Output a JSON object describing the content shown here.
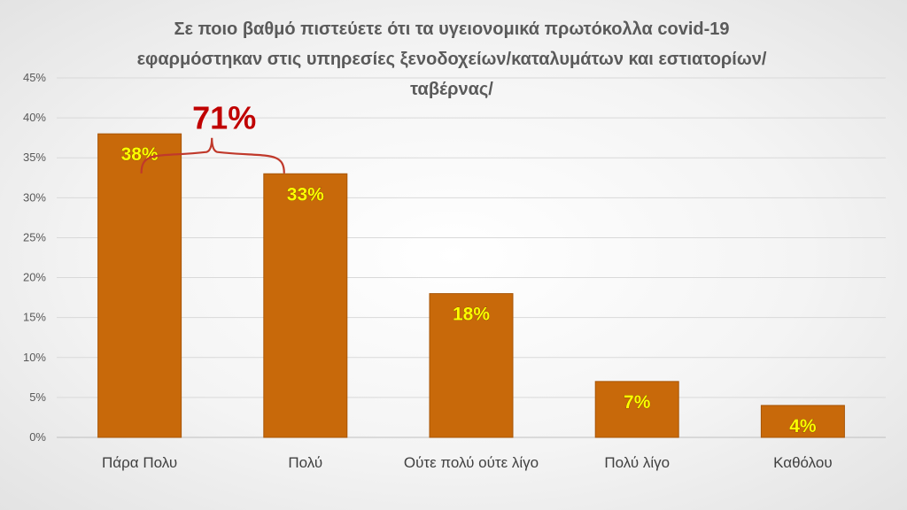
{
  "chart_data": {
    "type": "bar",
    "title": "Σε ποιο βαθμό πιστεύετε ότι τα υγειονομικά πρωτόκολλα covid-19 εφαρμόστηκαν στις υπηρεσίες ξενοδοχείων/καταλυμάτων και εστιατορίων/ταβέρνας/",
    "categories": [
      "Πάρα Πολυ",
      "Πολύ",
      "Ούτε πολύ ούτε λίγο",
      "Πολύ λίγο",
      "Καθόλου"
    ],
    "values": [
      38,
      33,
      18,
      7,
      4
    ],
    "value_labels": [
      "38%",
      "33%",
      "18%",
      "7%",
      "4%"
    ],
    "ylim": [
      0,
      45
    ],
    "yticks": [
      0,
      5,
      10,
      15,
      20,
      25,
      30,
      35,
      40,
      45
    ],
    "ytick_labels": [
      "0%",
      "5%",
      "10%",
      "15%",
      "20%",
      "25%",
      "30%",
      "35%",
      "40%",
      "45%"
    ],
    "grid": true,
    "bar_color": "#c8690a",
    "value_label_color": "#ffff00",
    "annotation": {
      "text": "71%",
      "color": "#c00000",
      "spans_categories": [
        "Πάρα Πολυ",
        "Πολύ"
      ]
    }
  }
}
